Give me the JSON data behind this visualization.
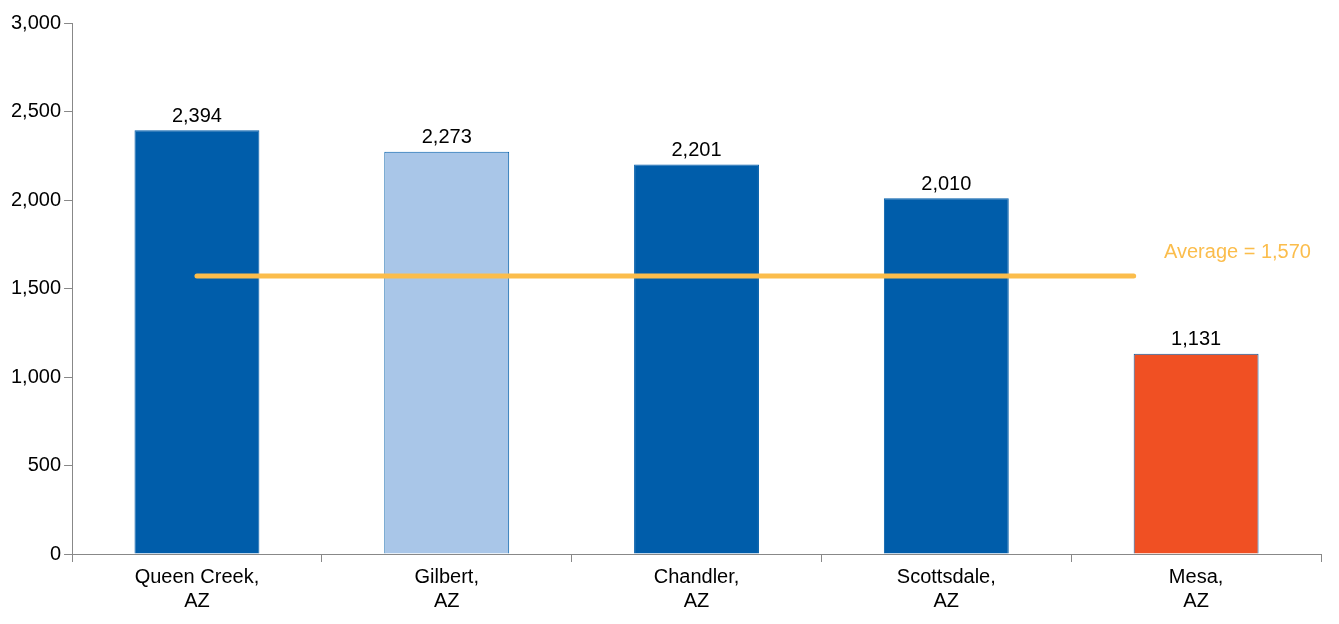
{
  "chart_data": {
    "type": "bar",
    "categories": [
      "Queen Creek, AZ",
      "Gilbert, AZ",
      "Chandler, AZ",
      "Scottsdale, AZ",
      "Mesa, AZ"
    ],
    "values": [
      2394,
      2273,
      2201,
      2010,
      1131
    ],
    "colors": [
      "#005daa",
      "#a9c6e8",
      "#005daa",
      "#005daa",
      "#f05023"
    ],
    "value_labels": [
      "2,394",
      "2,273",
      "2,201",
      "2,010",
      "1,131"
    ],
    "ylim": [
      0,
      3000
    ],
    "yticks": [
      0,
      500,
      {
        "value": 1000,
        "label": "1,000"
      },
      {
        "value": 1500,
        "label": "1,500"
      },
      {
        "value": 2000,
        "label": "2,000"
      },
      {
        "value": 2500,
        "label": "2,500"
      },
      {
        "value": 3000,
        "label": "3,000"
      }
    ],
    "grid": false,
    "legend": false,
    "ref_lines": [
      {
        "axis": "y",
        "value": 1570,
        "label": "Average = 1,570",
        "color": "#fbbd4c"
      }
    ]
  }
}
